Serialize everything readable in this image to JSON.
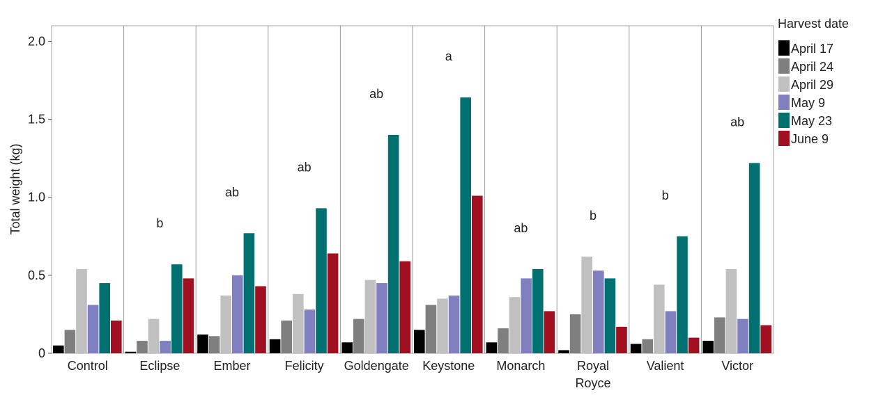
{
  "chart_data": {
    "type": "bar",
    "ylabel": "Total weight (kg)",
    "xlabel": "",
    "ylim": [
      0,
      2.1
    ],
    "yticks": [
      0,
      0.5,
      1.0,
      1.5,
      2.0
    ],
    "ytick_labels": [
      "0",
      "0.5",
      "1.0",
      "1.5",
      "2.0"
    ],
    "grid": false,
    "legend": {
      "title": "Harvest date",
      "placement": "right"
    },
    "categories": [
      [
        "Control"
      ],
      [
        "Eclipse"
      ],
      [
        "Ember"
      ],
      [
        "Felicity"
      ],
      [
        "Goldengate"
      ],
      [
        "Keystone"
      ],
      [
        "Monarch"
      ],
      [
        "Royal",
        "Royce"
      ],
      [
        "Valient"
      ],
      [
        "Victor"
      ]
    ],
    "letters": [
      "",
      "b",
      "ab",
      "ab",
      "ab",
      "a",
      "ab",
      "b",
      "b",
      "ab"
    ],
    "series": [
      {
        "name": "April 17",
        "color": "#000000",
        "values": [
          0.05,
          0.01,
          0.12,
          0.09,
          0.07,
          0.15,
          0.07,
          0.02,
          0.06,
          0.08
        ]
      },
      {
        "name": "April 24",
        "color": "#7f7f7f",
        "values": [
          0.15,
          0.08,
          0.11,
          0.21,
          0.22,
          0.31,
          0.16,
          0.25,
          0.09,
          0.23
        ]
      },
      {
        "name": "April 29",
        "color": "#c0c0c0",
        "values": [
          0.54,
          0.22,
          0.37,
          0.38,
          0.47,
          0.35,
          0.36,
          0.62,
          0.44,
          0.54
        ]
      },
      {
        "name": "May 9",
        "color": "#8080c0",
        "values": [
          0.31,
          0.08,
          0.5,
          0.28,
          0.45,
          0.37,
          0.48,
          0.53,
          0.27,
          0.22
        ]
      },
      {
        "name": "May 23",
        "color": "#007070",
        "values": [
          0.45,
          0.57,
          0.77,
          0.93,
          1.4,
          1.64,
          0.54,
          0.48,
          0.75,
          1.22
        ]
      },
      {
        "name": "June 9",
        "color": "#a01020",
        "values": [
          0.21,
          0.48,
          0.43,
          0.64,
          0.59,
          1.01,
          0.27,
          0.17,
          0.1,
          0.18
        ]
      }
    ]
  }
}
